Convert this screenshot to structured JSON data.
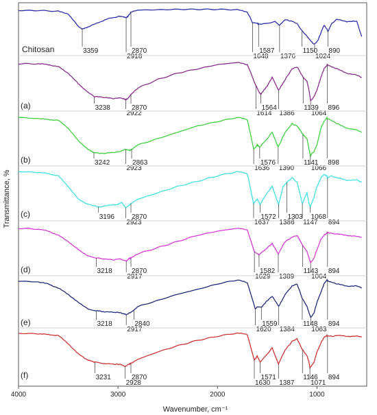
{
  "chart_data": {
    "type": "line",
    "xlabel": "Wavenumber, cm⁻¹",
    "ylabel": "Transmittance, %",
    "xlim": [
      4000,
      500
    ],
    "x_ticks": [
      "4000",
      "3000",
      "2000",
      "1000"
    ],
    "grid": false,
    "y_values_note": "",
    "series": [
      {
        "name": "Chitosan",
        "color": "#2b2fa8",
        "x": [
          4000,
          3800,
          3600,
          3500,
          3400,
          3359,
          3300,
          3200,
          3100,
          3000,
          2960,
          2918,
          2900,
          2870,
          2800,
          2600,
          2400,
          2200,
          2000,
          1800,
          1700,
          1648,
          1600,
          1587,
          1500,
          1420,
          1376,
          1320,
          1250,
          1200,
          1150,
          1100,
          1060,
          1024,
          990,
          960,
          930,
          900,
          890,
          850,
          800,
          700,
          600,
          550
        ],
        "y": [
          0.06,
          0.06,
          0.08,
          0.15,
          0.48,
          0.55,
          0.5,
          0.38,
          0.28,
          0.22,
          0.22,
          0.25,
          0.22,
          0.1,
          0.05,
          0.04,
          0.03,
          0.03,
          0.03,
          0.04,
          0.1,
          0.38,
          0.4,
          0.42,
          0.4,
          0.35,
          0.45,
          0.3,
          0.35,
          0.4,
          0.6,
          0.75,
          0.88,
          0.96,
          0.85,
          0.65,
          0.45,
          0.55,
          0.62,
          0.4,
          0.3,
          0.35,
          0.35,
          0.75
        ],
        "peaks": [
          "3359",
          "2918",
          "2870",
          "1648",
          "1587",
          "1376",
          "1150",
          "1024",
          "890"
        ],
        "label": "Chitosan"
      },
      {
        "name": "(a)",
        "color": "#8a2c8e",
        "x": [
          4000,
          3800,
          3700,
          3600,
          3500,
          3400,
          3300,
          3238,
          3150,
          3050,
          2980,
          2922,
          2900,
          2870,
          2800,
          2600,
          2400,
          2200,
          2000,
          1800,
          1700,
          1614,
          1580,
          1564,
          1500,
          1450,
          1386,
          1320,
          1250,
          1200,
          1139,
          1100,
          1080,
          1064,
          1030,
          1000,
          960,
          930,
          900,
          896,
          850,
          800,
          700,
          600,
          550
        ],
        "y": [
          0.08,
          0.08,
          0.1,
          0.15,
          0.3,
          0.55,
          0.75,
          0.85,
          0.87,
          0.9,
          0.88,
          0.92,
          0.9,
          0.8,
          0.65,
          0.45,
          0.3,
          0.2,
          0.1,
          0.05,
          0.1,
          0.6,
          0.75,
          0.8,
          0.6,
          0.4,
          0.7,
          0.45,
          0.2,
          0.15,
          0.4,
          0.5,
          0.7,
          0.95,
          0.85,
          0.7,
          0.4,
          0.2,
          0.12,
          0.1,
          0.15,
          0.2,
          0.3,
          0.35,
          0.4
        ],
        "peaks": [
          "3238",
          "2922",
          "2870",
          "1614",
          "1564",
          "1386",
          "1139",
          "1064",
          "896"
        ],
        "label": "(a)"
      },
      {
        "name": "(b)",
        "color": "#3fd03f",
        "x": [
          4000,
          3800,
          3700,
          3600,
          3500,
          3400,
          3300,
          3242,
          3150,
          3050,
          2980,
          2923,
          2880,
          2863,
          2800,
          2600,
          2400,
          2200,
          2000,
          1800,
          1700,
          1636,
          1600,
          1576,
          1500,
          1450,
          1390,
          1320,
          1250,
          1200,
          1141,
          1100,
          1080,
          1066,
          1030,
          1000,
          960,
          930,
          900,
          898,
          850,
          800,
          700,
          600,
          550
        ],
        "y": [
          0.05,
          0.08,
          0.1,
          0.12,
          0.3,
          0.6,
          0.8,
          0.88,
          0.9,
          0.88,
          0.85,
          0.8,
          0.82,
          0.8,
          0.7,
          0.55,
          0.4,
          0.25,
          0.15,
          0.05,
          0.1,
          0.8,
          0.7,
          0.75,
          0.55,
          0.4,
          0.75,
          0.4,
          0.2,
          0.25,
          0.45,
          0.55,
          0.8,
          0.95,
          0.85,
          0.7,
          0.3,
          0.15,
          0.05,
          0.08,
          0.12,
          0.2,
          0.3,
          0.35,
          0.4
        ],
        "peaks": [
          "3242",
          "2923",
          "2863",
          "1636",
          "1576",
          "1390",
          "1141",
          "1066",
          "898"
        ],
        "label": "(b)"
      },
      {
        "name": "(c)",
        "color": "#3fe0e8",
        "x": [
          4000,
          3800,
          3700,
          3600,
          3500,
          3400,
          3300,
          3196,
          3100,
          3000,
          2960,
          2923,
          2890,
          2870,
          2800,
          2600,
          2400,
          2200,
          2000,
          1800,
          1700,
          1637,
          1600,
          1572,
          1500,
          1450,
          1386,
          1340,
          1303,
          1250,
          1200,
          1147,
          1100,
          1080,
          1068,
          1030,
          1000,
          960,
          930,
          900,
          894,
          850,
          800,
          700,
          600,
          550
        ],
        "y": [
          0.05,
          0.07,
          0.1,
          0.15,
          0.4,
          0.7,
          0.82,
          0.88,
          0.85,
          0.82,
          0.78,
          0.9,
          0.85,
          0.8,
          0.7,
          0.55,
          0.4,
          0.28,
          0.15,
          0.05,
          0.1,
          0.8,
          0.7,
          0.82,
          0.55,
          0.4,
          0.82,
          0.4,
          0.3,
          0.2,
          0.3,
          0.8,
          0.55,
          0.8,
          0.88,
          0.65,
          0.4,
          0.2,
          0.12,
          0.15,
          0.2,
          0.15,
          0.2,
          0.25,
          0.25,
          0.3
        ],
        "peaks": [
          "3196",
          "2923",
          "2870",
          "1637",
          "1572",
          "1386",
          "1303",
          "1147",
          "1068",
          "894"
        ],
        "label": "(c)"
      },
      {
        "name": "(d)",
        "color": "#d63ad6",
        "x": [
          4000,
          3800,
          3700,
          3600,
          3500,
          3400,
          3300,
          3218,
          3150,
          3050,
          2980,
          2917,
          2890,
          2870,
          2800,
          2600,
          2400,
          2200,
          2000,
          1800,
          1700,
          1629,
          1600,
          1582,
          1500,
          1450,
          1389,
          1320,
          1250,
          1200,
          1143,
          1100,
          1080,
          1064,
          1030,
          1000,
          960,
          930,
          900,
          894,
          850,
          800,
          700,
          600,
          550
        ],
        "y": [
          0.08,
          0.1,
          0.15,
          0.25,
          0.4,
          0.6,
          0.75,
          0.8,
          0.82,
          0.85,
          0.82,
          0.88,
          0.82,
          0.8,
          0.7,
          0.55,
          0.4,
          0.25,
          0.15,
          0.08,
          0.12,
          0.65,
          0.7,
          0.72,
          0.55,
          0.45,
          0.7,
          0.4,
          0.3,
          0.25,
          0.5,
          0.65,
          0.8,
          0.92,
          0.8,
          0.6,
          0.35,
          0.25,
          0.2,
          0.18,
          0.2,
          0.22,
          0.25,
          0.28,
          0.3
        ],
        "peaks": [
          "3218",
          "2917",
          "2870",
          "1629",
          "1582",
          "1389",
          "1143",
          "1064",
          "894"
        ],
        "label": "(d)"
      },
      {
        "name": "(e)",
        "color": "#1e2a7a",
        "x": [
          4000,
          3800,
          3700,
          3600,
          3500,
          3400,
          3300,
          3218,
          3150,
          3050,
          2980,
          2917,
          2880,
          2840,
          2800,
          2600,
          2400,
          2200,
          2000,
          1800,
          1700,
          1620,
          1590,
          1559,
          1500,
          1450,
          1384,
          1320,
          1250,
          1200,
          1148,
          1100,
          1080,
          1063,
          1030,
          1000,
          960,
          930,
          900,
          894,
          850,
          800,
          700,
          600,
          550
        ],
        "y": [
          0.08,
          0.1,
          0.15,
          0.25,
          0.4,
          0.6,
          0.75,
          0.8,
          0.82,
          0.84,
          0.84,
          0.9,
          0.85,
          0.78,
          0.7,
          0.55,
          0.4,
          0.28,
          0.15,
          0.05,
          0.12,
          0.75,
          0.7,
          0.72,
          0.55,
          0.45,
          0.7,
          0.4,
          0.2,
          0.15,
          0.5,
          0.7,
          0.85,
          0.96,
          0.85,
          0.6,
          0.35,
          0.15,
          0.05,
          0.08,
          0.1,
          0.15,
          0.2,
          0.2,
          0.25
        ],
        "peaks": [
          "3218",
          "2917",
          "2840",
          "1620",
          "1559",
          "1384",
          "1148",
          "1063",
          "894"
        ],
        "label": "(e)"
      },
      {
        "name": "(f)",
        "color": "#cc3333",
        "x": [
          4000,
          3800,
          3700,
          3600,
          3500,
          3400,
          3300,
          3231,
          3150,
          3050,
          2980,
          2928,
          2890,
          2870,
          2800,
          2600,
          2400,
          2200,
          2000,
          1800,
          1700,
          1630,
          1600,
          1571,
          1500,
          1450,
          1387,
          1320,
          1250,
          1200,
          1146,
          1100,
          1080,
          1071,
          1030,
          1000,
          960,
          930,
          900,
          894,
          850,
          800,
          700,
          600,
          550
        ],
        "y": [
          0.05,
          0.06,
          0.08,
          0.1,
          0.3,
          0.55,
          0.7,
          0.75,
          0.78,
          0.8,
          0.8,
          0.85,
          0.8,
          0.78,
          0.68,
          0.5,
          0.35,
          0.22,
          0.12,
          0.04,
          0.08,
          0.7,
          0.6,
          0.75,
          0.55,
          0.4,
          0.8,
          0.45,
          0.25,
          0.18,
          0.45,
          0.6,
          0.75,
          0.88,
          0.75,
          0.5,
          0.28,
          0.15,
          0.1,
          0.12,
          0.12,
          0.1,
          0.12,
          0.12,
          0.14
        ],
        "peaks": [
          "3231",
          "2928",
          "2870",
          "1630",
          "1571",
          "1387",
          "1146",
          "1071",
          "894"
        ],
        "label": "(f)"
      }
    ]
  }
}
